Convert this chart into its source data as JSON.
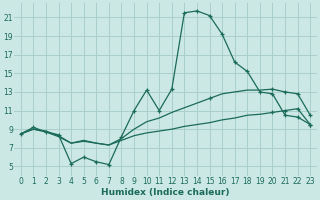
{
  "bg_color": "#cce8e4",
  "grid_color": "#aacfca",
  "line_color": "#1a6b5a",
  "xlabel": "Humidex (Indice chaleur)",
  "xlim": [
    -0.5,
    23.5
  ],
  "ylim": [
    4,
    22.5
  ],
  "xticks": [
    0,
    1,
    2,
    3,
    4,
    5,
    6,
    7,
    8,
    9,
    10,
    11,
    12,
    13,
    14,
    15,
    16,
    17,
    18,
    19,
    20,
    21,
    22,
    23
  ],
  "yticks": [
    5,
    7,
    9,
    11,
    13,
    15,
    17,
    19,
    21
  ],
  "line1_x": [
    0,
    1,
    2,
    3,
    4,
    5,
    6,
    7,
    8,
    9,
    10,
    11,
    12,
    13,
    14,
    15,
    16,
    17,
    18,
    19,
    20,
    21,
    22,
    23
  ],
  "line1_y": [
    8.5,
    9.2,
    8.7,
    8.4,
    5.3,
    6.0,
    5.5,
    5.2,
    8.2,
    11.0,
    13.2,
    11.0,
    13.3,
    21.5,
    21.7,
    21.2,
    19.2,
    16.2,
    15.2,
    13.0,
    12.8,
    10.5,
    10.3,
    9.5
  ],
  "line1_markers": [
    0,
    1,
    2,
    3,
    4,
    5,
    6,
    7,
    8,
    9,
    10,
    11,
    12,
    13,
    14,
    15,
    16,
    17,
    18,
    19,
    20,
    21,
    22,
    23
  ],
  "line2_x": [
    0,
    1,
    2,
    3,
    4,
    5,
    6,
    7,
    8,
    9,
    10,
    11,
    12,
    13,
    14,
    15,
    16,
    17,
    18,
    19,
    20,
    21,
    22,
    23
  ],
  "line2_y": [
    8.5,
    9.0,
    8.8,
    8.3,
    7.5,
    7.8,
    7.5,
    7.3,
    8.0,
    9.0,
    9.8,
    10.2,
    10.8,
    11.3,
    11.8,
    12.3,
    12.8,
    13.0,
    13.2,
    13.2,
    13.3,
    13.0,
    12.8,
    10.5
  ],
  "line2_markers": [
    15,
    20,
    21,
    22,
    23
  ],
  "line3_x": [
    0,
    1,
    2,
    3,
    4,
    5,
    6,
    7,
    8,
    9,
    10,
    11,
    12,
    13,
    14,
    15,
    16,
    17,
    18,
    19,
    20,
    21,
    22,
    23
  ],
  "line3_y": [
    8.5,
    9.0,
    8.7,
    8.2,
    7.5,
    7.7,
    7.5,
    7.3,
    7.8,
    8.3,
    8.6,
    8.8,
    9.0,
    9.3,
    9.5,
    9.7,
    10.0,
    10.2,
    10.5,
    10.6,
    10.8,
    11.0,
    11.2,
    9.5
  ],
  "line3_markers": [
    20,
    21,
    22,
    23
  ]
}
